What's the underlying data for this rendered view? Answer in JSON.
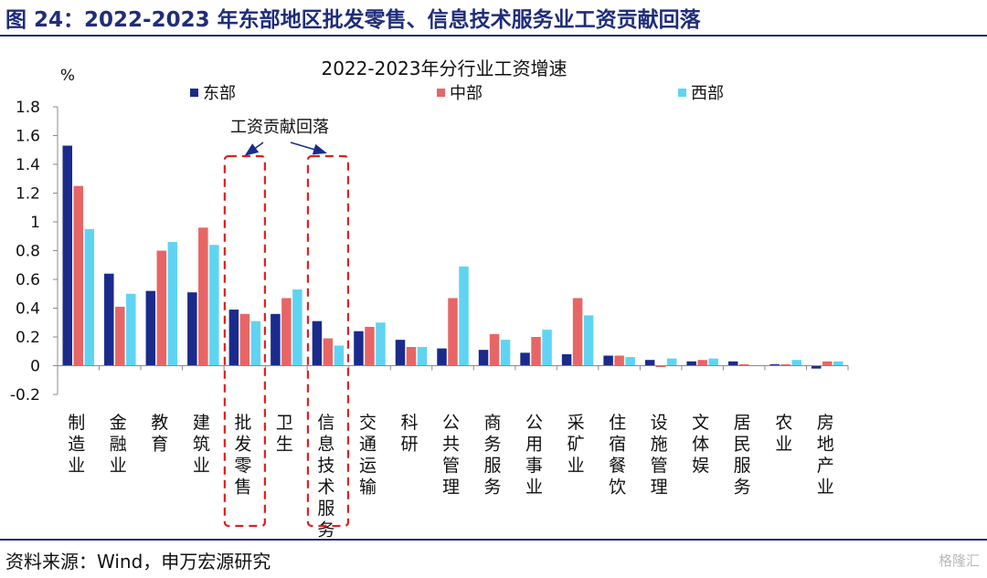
{
  "figure_title": "图 24：2022-2023 年东部地区批发零售、信息技术服务业工资贡献回落",
  "source": "资料来源：Wind，申万宏源研究",
  "watermark": "格隆汇",
  "colors": {
    "east": "#1a2b8c",
    "central": "#e86565",
    "west": "#5fd4f2",
    "accent": "#1f2d7a",
    "annotation": "#e02020"
  },
  "chart_data": {
    "type": "bar",
    "title": "2022-2023年分行业工资增速",
    "ylabel": "%",
    "xlabel": "",
    "ylim": [
      -0.2,
      1.8
    ],
    "yticks": [
      -0.2,
      0,
      0.2,
      0.4,
      0.6,
      0.8,
      1,
      1.2,
      1.4,
      1.6,
      1.8
    ],
    "grid": false,
    "legend_position": "top",
    "categories": [
      "制造业",
      "金融业",
      "教育",
      "建筑业",
      "批发零售",
      "卫生",
      "信息技术服务",
      "交通运输",
      "科研",
      "公共管理",
      "商务服务",
      "公用事业",
      "采矿业",
      "住宿餐饮",
      "设施管理",
      "文体娱",
      "居民服务",
      "农业",
      "房地产业"
    ],
    "series": [
      {
        "name": "东部",
        "values": [
          1.53,
          0.64,
          0.52,
          0.51,
          0.39,
          0.36,
          0.31,
          0.24,
          0.18,
          0.12,
          0.11,
          0.09,
          0.08,
          0.07,
          0.04,
          0.03,
          0.03,
          0.01,
          -0.02
        ]
      },
      {
        "name": "中部",
        "values": [
          1.25,
          0.41,
          0.8,
          0.96,
          0.36,
          0.47,
          0.19,
          0.27,
          0.13,
          0.47,
          0.22,
          0.2,
          0.47,
          0.07,
          -0.01,
          0.04,
          0.01,
          0.01,
          0.03
        ]
      },
      {
        "name": "西部",
        "values": [
          0.95,
          0.5,
          0.86,
          0.84,
          0.31,
          0.53,
          0.14,
          0.3,
          0.13,
          0.69,
          0.18,
          0.25,
          0.35,
          0.06,
          0.05,
          0.05,
          0.0,
          0.04,
          0.03
        ]
      }
    ],
    "annotation": {
      "text": "工资贡献回落",
      "highlighted_categories": [
        "批发零售",
        "信息技术服务"
      ]
    }
  }
}
